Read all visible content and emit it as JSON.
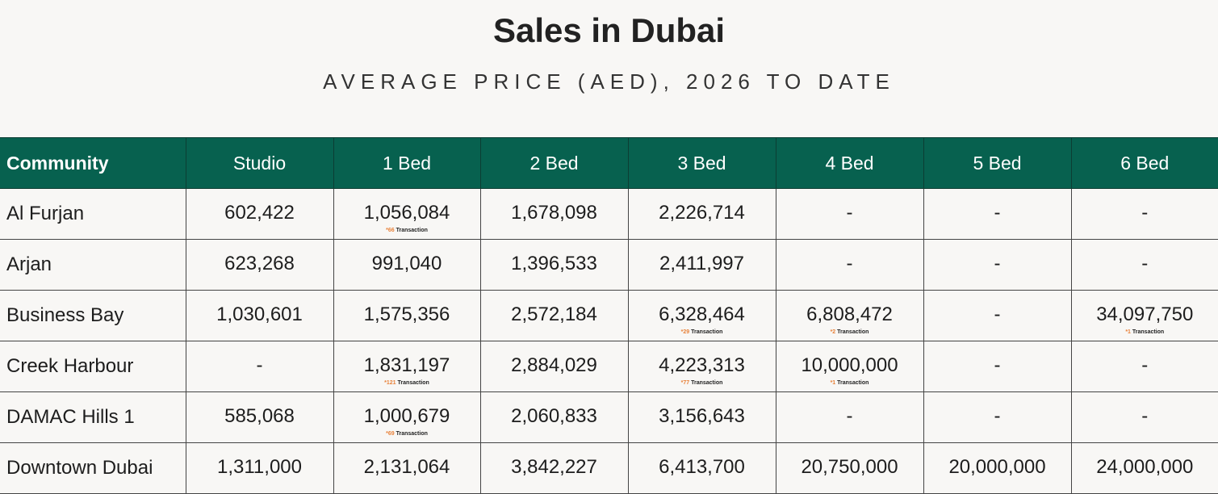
{
  "header": {
    "title": "Sales in Dubai",
    "subtitle": "AVERAGE PRICE (AED), 2026 TO DATE"
  },
  "table": {
    "columns": [
      "Community",
      "Studio",
      "1 Bed",
      "2 Bed",
      "3 Bed",
      "4 Bed",
      "5 Bed",
      "6 Bed"
    ],
    "rows": [
      {
        "community": "Al Furjan",
        "cells": [
          {
            "text": "602,422"
          },
          {
            "text": "1,056,084",
            "note": {
              "mark": "*66",
              "label": "Transaction"
            }
          },
          {
            "text": "1,678,098"
          },
          {
            "text": "2,226,714"
          },
          {
            "text": "-"
          },
          {
            "text": "-"
          },
          {
            "text": "-"
          }
        ]
      },
      {
        "community": "Arjan",
        "cells": [
          {
            "text": "623,268"
          },
          {
            "text": "991,040"
          },
          {
            "text": "1,396,533"
          },
          {
            "text": "2,411,997"
          },
          {
            "text": "-"
          },
          {
            "text": "-"
          },
          {
            "text": "-"
          }
        ]
      },
      {
        "community": "Business Bay",
        "cells": [
          {
            "text": "1,030,601"
          },
          {
            "text": "1,575,356"
          },
          {
            "text": "2,572,184"
          },
          {
            "text": "6,328,464",
            "note": {
              "mark": "*29",
              "label": "Transaction"
            }
          },
          {
            "text": "6,808,472",
            "note": {
              "mark": "*2",
              "label": "Transaction"
            }
          },
          {
            "text": "-"
          },
          {
            "text": "34,097,750",
            "note": {
              "mark": "*1",
              "label": "Transaction"
            }
          }
        ]
      },
      {
        "community": "Creek Harbour",
        "cells": [
          {
            "text": "-"
          },
          {
            "text": "1,831,197",
            "note": {
              "mark": "*121",
              "label": "Transaction"
            }
          },
          {
            "text": "2,884,029"
          },
          {
            "text": "4,223,313",
            "note": {
              "mark": "*77",
              "label": "Transaction"
            }
          },
          {
            "text": "10,000,000",
            "note": {
              "mark": "*1",
              "label": "Transaction"
            }
          },
          {
            "text": "-"
          },
          {
            "text": "-"
          }
        ]
      },
      {
        "community": "DAMAC Hills 1",
        "cells": [
          {
            "text": "585,068"
          },
          {
            "text": "1,000,679",
            "note": {
              "mark": "*69",
              "label": "Transaction"
            }
          },
          {
            "text": "2,060,833"
          },
          {
            "text": "3,156,643"
          },
          {
            "text": "-"
          },
          {
            "text": "-"
          },
          {
            "text": "-"
          }
        ]
      },
      {
        "community": "Downtown Dubai",
        "cells": [
          {
            "text": "1,311,000"
          },
          {
            "text": "2,131,064"
          },
          {
            "text": "3,842,227"
          },
          {
            "text": "6,413,700"
          },
          {
            "text": "20,750,000"
          },
          {
            "text": "20,000,000"
          },
          {
            "text": "24,000,000"
          }
        ]
      }
    ]
  }
}
